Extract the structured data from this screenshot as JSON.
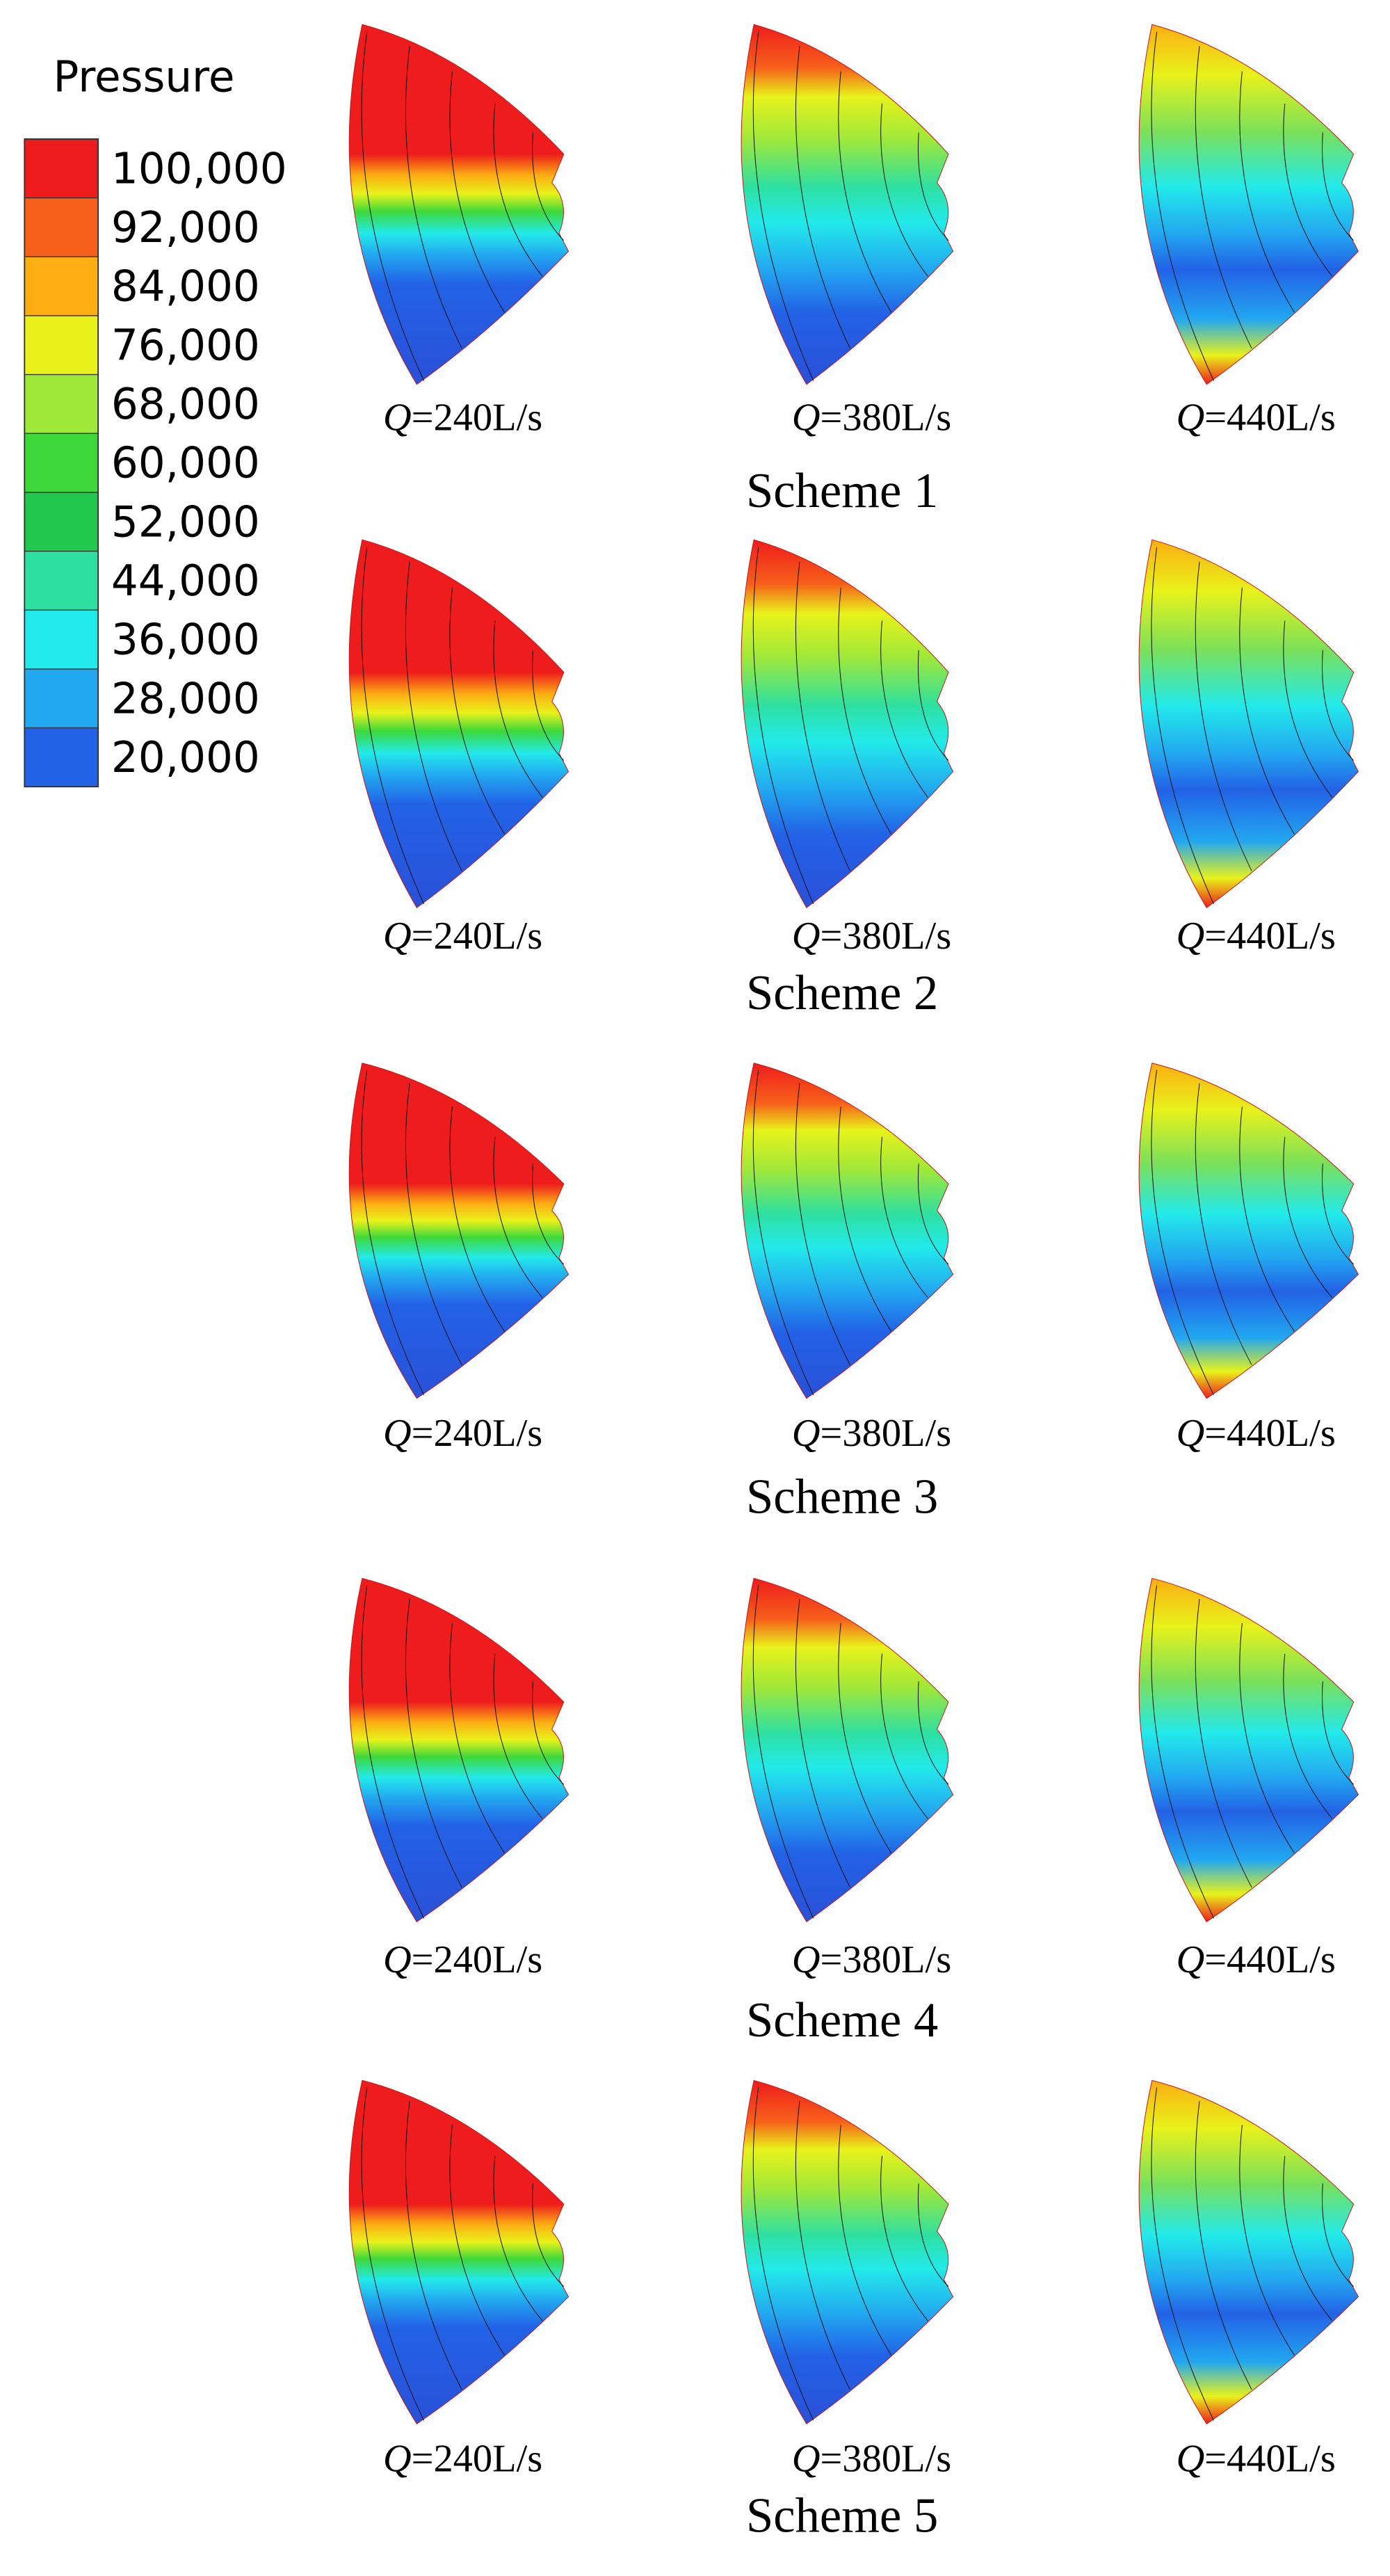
{
  "legend": {
    "title": "Pressure",
    "ticks": [
      {
        "value": 100000,
        "label": "100,000"
      },
      {
        "value": 92000,
        "label": "92,000"
      },
      {
        "value": 84000,
        "label": "84,000"
      },
      {
        "value": 76000,
        "label": "76,000"
      },
      {
        "value": 68000,
        "label": "68,000"
      },
      {
        "value": 60000,
        "label": "60,000"
      },
      {
        "value": 52000,
        "label": "52,000"
      },
      {
        "value": 44000,
        "label": "44,000"
      },
      {
        "value": 36000,
        "label": "36,000"
      },
      {
        "value": 28000,
        "label": "28,000"
      },
      {
        "value": 20000,
        "label": "20,000"
      }
    ],
    "colors": [
      "#ee1c1c",
      "#f7601a",
      "#fcae12",
      "#e8f21a",
      "#9ee83a",
      "#3ed83a",
      "#22c84e",
      "#2ee0a0",
      "#22eaea",
      "#22a8f0",
      "#2262e6"
    ]
  },
  "schemes": [
    {
      "label": "Scheme 1",
      "panels": [
        {
          "symbol": "Q",
          "flow": "=240L/s"
        },
        {
          "symbol": "Q",
          "flow": "=380L/s"
        },
        {
          "symbol": "Q",
          "flow": "=440L/s"
        }
      ]
    },
    {
      "label": "Scheme 2",
      "panels": [
        {
          "symbol": "Q",
          "flow": "=240L/s"
        },
        {
          "symbol": "Q",
          "flow": "=380L/s"
        },
        {
          "symbol": "Q",
          "flow": "=440L/s"
        }
      ]
    },
    {
      "label": "Scheme 3",
      "panels": [
        {
          "symbol": "Q",
          "flow": "=240L/s"
        },
        {
          "symbol": "Q",
          "flow": "=380L/s"
        },
        {
          "symbol": "Q",
          "flow": "=440L/s"
        }
      ]
    },
    {
      "label": "Scheme 4",
      "panels": [
        {
          "symbol": "Q",
          "flow": "=240L/s"
        },
        {
          "symbol": "Q",
          "flow": "=380L/s"
        },
        {
          "symbol": "Q",
          "flow": "=440L/s"
        }
      ]
    },
    {
      "label": "Scheme 5",
      "panels": [
        {
          "symbol": "Q",
          "flow": "=240L/s"
        },
        {
          "symbol": "Q",
          "flow": "=380L/s"
        },
        {
          "symbol": "Q",
          "flow": "=440L/s"
        }
      ]
    }
  ]
}
